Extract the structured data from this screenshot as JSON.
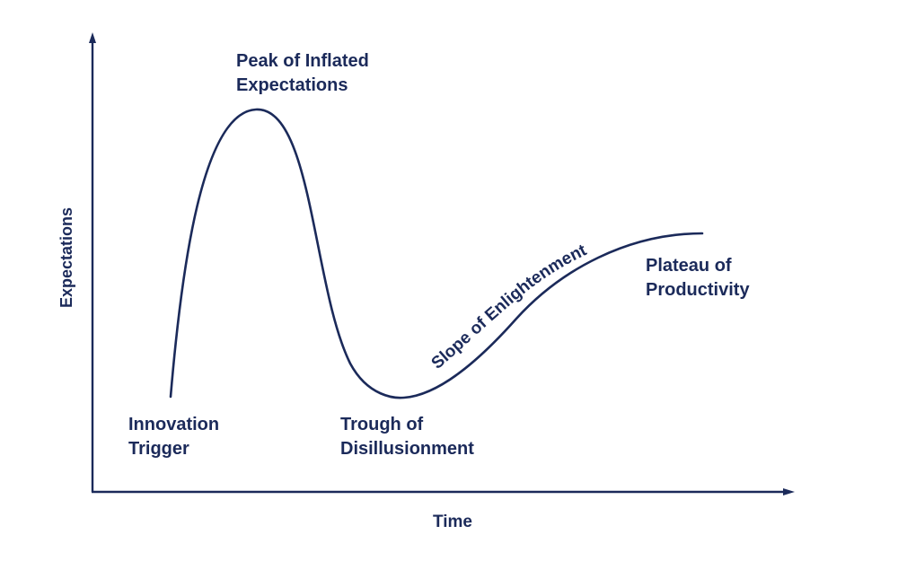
{
  "colors": {
    "ink": "#1b2a5a",
    "background": "#ffffff"
  },
  "axes": {
    "y_label": "Expectations",
    "x_label": "Time"
  },
  "phases": {
    "innovation_trigger": [
      "Innovation",
      "Trigger"
    ],
    "peak": [
      "Peak of Inflated",
      "Expectations"
    ],
    "trough": [
      "Trough of",
      "Disillusionment"
    ],
    "slope": "Slope of Enlightenment",
    "plateau": [
      "Plateau of",
      "Productivity"
    ]
  }
}
